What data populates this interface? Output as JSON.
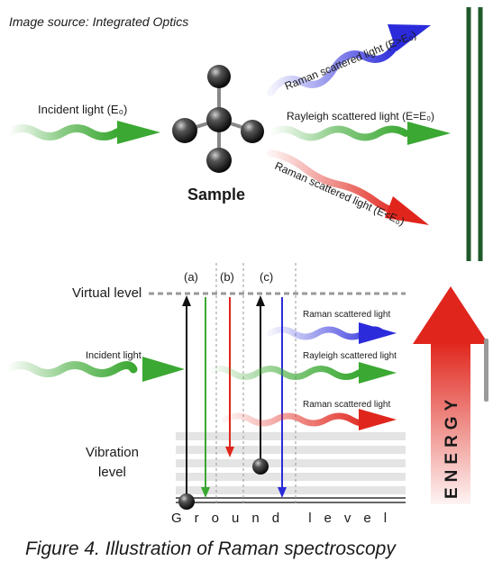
{
  "image_source": "Image source: Integrated Optics",
  "top": {
    "incident": "Incident light (E₀)",
    "raman_high": "Raman scattered light (E>E₀)",
    "rayleigh": "Rayleigh scattered light (E=E₀)",
    "raman_low": "Raman scattered light (E<E₀)",
    "sample": "Sample"
  },
  "bottom": {
    "virtual_level": "Virtual level",
    "vibration_line1": "Vibration",
    "vibration_line2": "level",
    "ground_level": "Ground level",
    "incident": "Incident light",
    "raman_1": "Raman scattered light",
    "rayleigh": "Rayleigh scattered light",
    "raman_2": "Raman scattered light",
    "col_a": "(a)",
    "col_b": "(b)",
    "col_c": "(c)",
    "energy": "ENERGY"
  },
  "caption": "Figure 4. Illustration of Raman spectroscopy",
  "colors": {
    "green": "#3aa832",
    "blue": "#2b2bdb",
    "red": "#e0261c",
    "dark_green": "#1f5a2a"
  }
}
